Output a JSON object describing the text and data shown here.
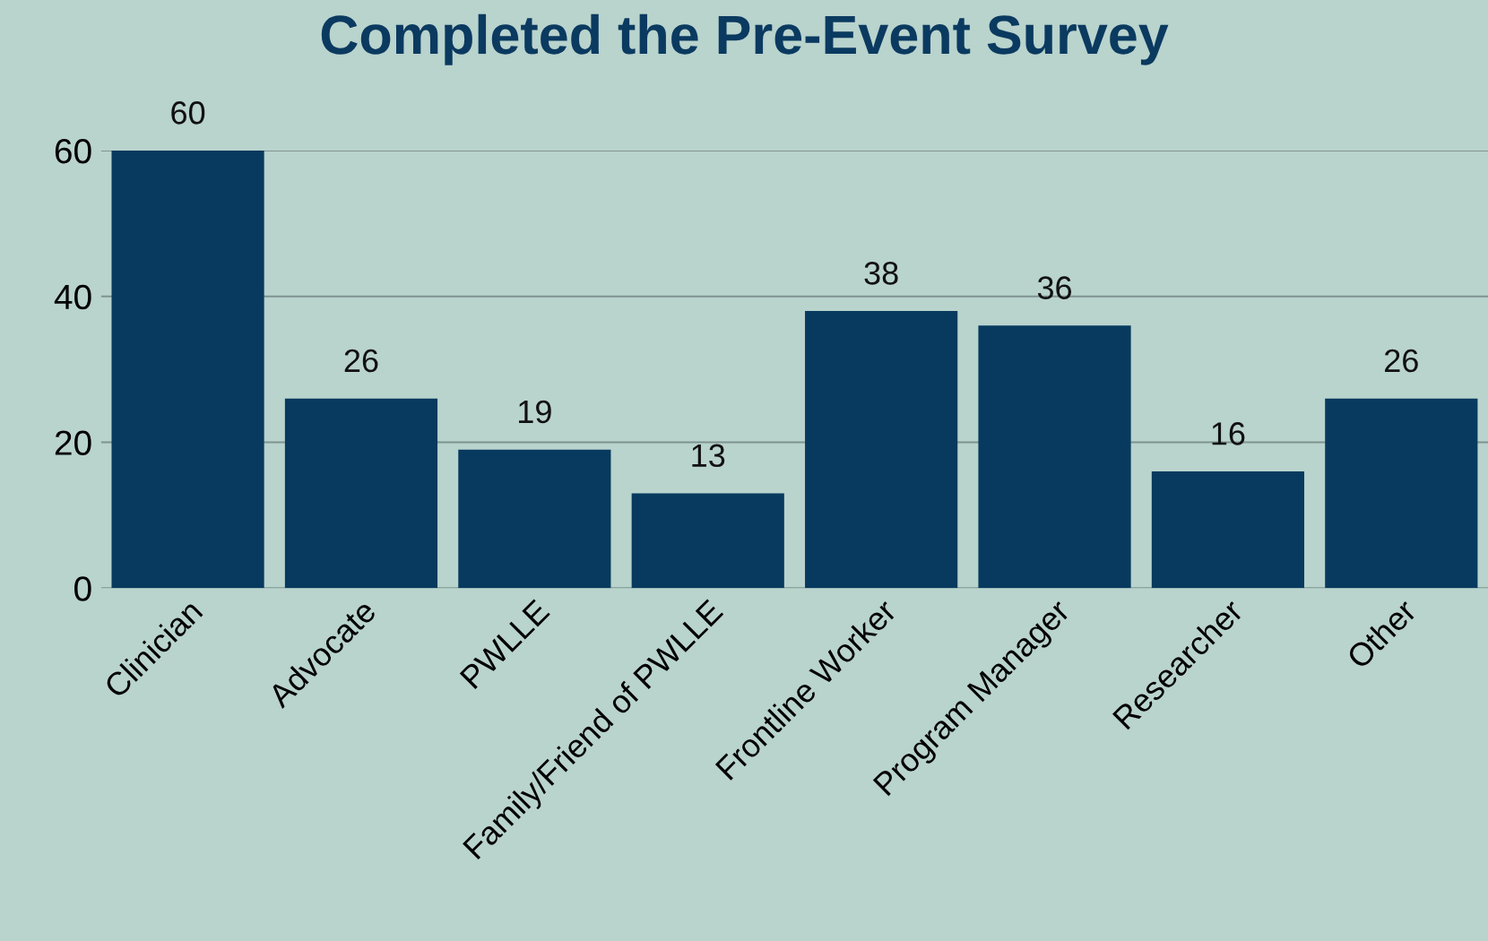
{
  "chart_data": {
    "type": "bar",
    "title": "Completed the Pre-Event Survey",
    "categories": [
      "Clinician",
      "Advocate",
      "PWLLE",
      "Family/Friend of PWLLE",
      "Frontline Worker",
      "Program Manager",
      "Researcher",
      "Other"
    ],
    "values": [
      60,
      26,
      19,
      13,
      38,
      36,
      16,
      26
    ],
    "color": "#073a5e",
    "ylim": [
      0,
      60
    ],
    "yticks": [
      0,
      20,
      40,
      60
    ],
    "grid": "y",
    "data_labels": true
  }
}
